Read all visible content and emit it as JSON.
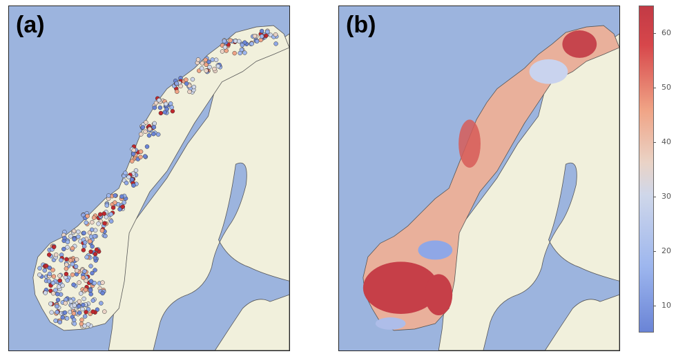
{
  "panels": [
    {
      "label": "(a)"
    },
    {
      "label": "(b)"
    }
  ],
  "colors": {
    "sea": "#9cb4de",
    "land": "#f1f0dc",
    "border": "#555555",
    "low": "#6a84d6",
    "mid": "#dcdcdc",
    "high": "#c23a45"
  },
  "colorbar": {
    "min": 5,
    "max": 65,
    "ticks": [
      "10",
      "20",
      "30",
      "40",
      "50",
      "60"
    ]
  }
}
